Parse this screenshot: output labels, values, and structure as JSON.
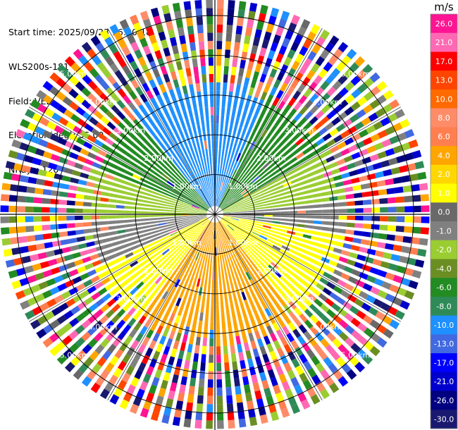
{
  "meta": {
    "start_time": "Start time: 2025/09/23 16:00:18",
    "instrument": "WLS200s-181",
    "field": "Field: VEL",
    "elevation": "Elevation(deg): 35.00",
    "nrays": "NRays: 120"
  },
  "chart_data": {
    "type": "heatmap",
    "projection": "polar PPI",
    "field": "VEL",
    "units": "m/s",
    "n_rays": 120,
    "elevation_deg": 35.0,
    "range_rings_km": [
      1.0,
      2.0,
      3.0,
      4.0,
      5.0
    ],
    "ring_labels": [
      "1.00km",
      "2.00km",
      "3.00km",
      "4.00km",
      "5.00km"
    ],
    "max_range_km": 5.4,
    "valid_range_km": 3.2,
    "crosshair": true,
    "colorbar": {
      "label": "m/s",
      "ticks": [
        "26.0",
        "21.0",
        "17.0",
        "13.0",
        "10.0",
        "8.0",
        "6.0",
        "4.0",
        "2.0",
        "1.0",
        "0.0",
        "-1.0",
        "-2.0",
        "-4.0",
        "-6.0",
        "-8.0",
        "-10.0",
        "-13.0",
        "-17.0",
        "-21.0",
        "-26.0",
        "-30.0"
      ],
      "colors": [
        "#ff1493",
        "#ff69b4",
        "#ff0000",
        "#ff4500",
        "#ff6a00",
        "#ff8c69",
        "#ff7f50",
        "#ffa500",
        "#ffd700",
        "#ffff00",
        "#696969",
        "#808080",
        "#9acd32",
        "#6b8e23",
        "#228b22",
        "#2e8b57",
        "#1e90ff",
        "#4169e1",
        "#0000ff",
        "#0000cd",
        "#000080",
        "#191970"
      ]
    },
    "sectors": [
      {
        "from_deg": -40,
        "to_deg": 25,
        "dominant": "#1e90ff",
        "velocity_approx": -10.0
      },
      {
        "from_deg": 25,
        "to_deg": 60,
        "dominant": "#228b22",
        "velocity_approx": -5.0
      },
      {
        "from_deg": 60,
        "to_deg": 85,
        "dominant": "#9acd32",
        "velocity_approx": -2.0
      },
      {
        "from_deg": 85,
        "to_deg": 100,
        "dominant": "#808080",
        "velocity_approx": 0.0
      },
      {
        "from_deg": 100,
        "to_deg": 140,
        "dominant": "#ffff00",
        "velocity_approx": 2.0
      },
      {
        "from_deg": 140,
        "to_deg": 215,
        "dominant": "#ffa500",
        "velocity_approx": 4.0
      },
      {
        "from_deg": 215,
        "to_deg": 245,
        "dominant": "#ffff00",
        "velocity_approx": 2.0
      },
      {
        "from_deg": 245,
        "to_deg": 268,
        "dominant": "#808080",
        "velocity_approx": 0.0
      },
      {
        "from_deg": 268,
        "to_deg": 292,
        "dominant": "#9acd32",
        "velocity_approx": -2.0
      },
      {
        "from_deg": 292,
        "to_deg": 320,
        "dominant": "#228b22",
        "velocity_approx": -5.0
      }
    ]
  }
}
